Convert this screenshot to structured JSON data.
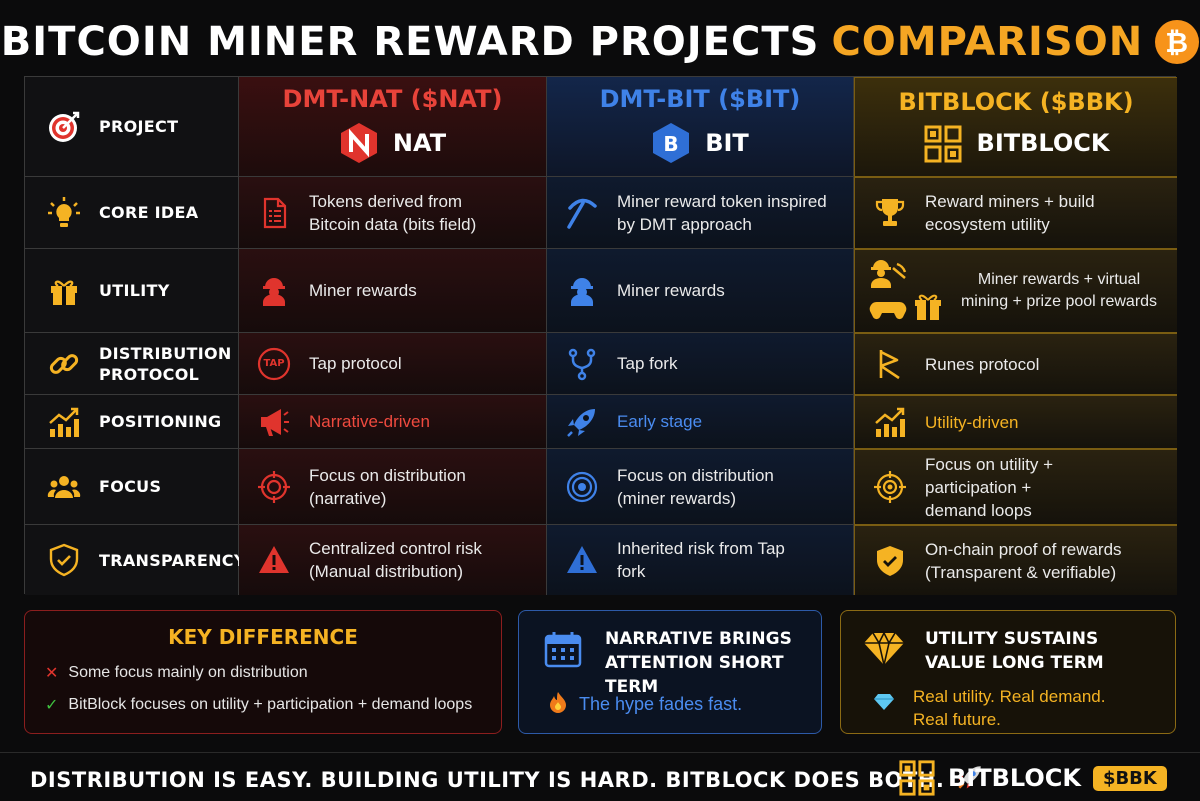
{
  "title": {
    "main": "BITCOIN MINER REWARD PROJECTS",
    "accent": "COMPARISON",
    "coin_icon": "bitcoin-coin-icon",
    "coin_symbol": "₿"
  },
  "colors": {
    "nat": "#e8433a",
    "bit": "#3f82e8",
    "bbk": "#f5b323",
    "btc": "#f7931a"
  },
  "columns": {
    "nat": {
      "title": "DMT-NAT ($NAT)",
      "logo_text": "NAT"
    },
    "bit": {
      "title": "DMT-BIT ($BIT)",
      "logo_text": "BIT"
    },
    "bbk": {
      "title": "BITBLOCK ($BBK)",
      "logo_text": "BITBLOCK"
    }
  },
  "rows": [
    {
      "label": "PROJECT",
      "icon": "target-icon"
    },
    {
      "label": "CORE IDEA",
      "icon": "lightbulb-icon",
      "nat": "Tokens derived from Bitcoin data (bits field)",
      "bit": "Miner reward token inspired by DMT approach",
      "bbk": "Reward miners + build ecosystem utility"
    },
    {
      "label": "UTILITY",
      "icon": "gift-icon",
      "nat": "Miner rewards",
      "bit": "Miner rewards",
      "bbk": "Miner rewards + virtual mining + prize pool rewards"
    },
    {
      "label": "DISTRIBUTION PROTOCOL",
      "icon": "chain-link-icon",
      "nat": "Tap protocol",
      "bit": "Tap fork",
      "bbk": "Runes protocol"
    },
    {
      "label": "POSITIONING",
      "icon": "growth-chart-icon",
      "nat": "Narrative-driven",
      "bit": "Early stage",
      "bbk": "Utility-driven"
    },
    {
      "label": "FOCUS",
      "icon": "people-icon",
      "nat": "Focus on distribution (narrative)",
      "bit": "Focus on distribution (miner rewards)",
      "bbk": "Focus on utility + participation + demand loops"
    },
    {
      "label": "TRANSPARENCY",
      "icon": "shield-check-icon",
      "nat": "Centralized control risk (Manual distribution)",
      "bit": "Inherited risk from Tap fork",
      "bbk": "On-chain proof of rewards (Transparent & verifiable)"
    }
  ],
  "tap_badge": "TAP",
  "key_difference": {
    "title": "KEY DIFFERENCE",
    "line1": "Some focus mainly on distribution",
    "line2": "BitBlock focuses on utility + participation + demand loops"
  },
  "narrative_box": {
    "title_line1": "NARRATIVE BRINGS",
    "title_line2": "ATTENTION SHORT TERM",
    "body": "The hype fades fast."
  },
  "utility_box": {
    "title_line1": "UTILITY SUSTAINS",
    "title_line2": "VALUE LONG TERM",
    "body_line1": "Real utility. Real demand.",
    "body_line2": "Real future."
  },
  "footer": {
    "text": "DISTRIBUTION IS EASY. BUILDING UTILITY IS HARD. BITBLOCK DOES BOTH.",
    "brand": "BITBLOCK",
    "ticker": "$BBK"
  }
}
